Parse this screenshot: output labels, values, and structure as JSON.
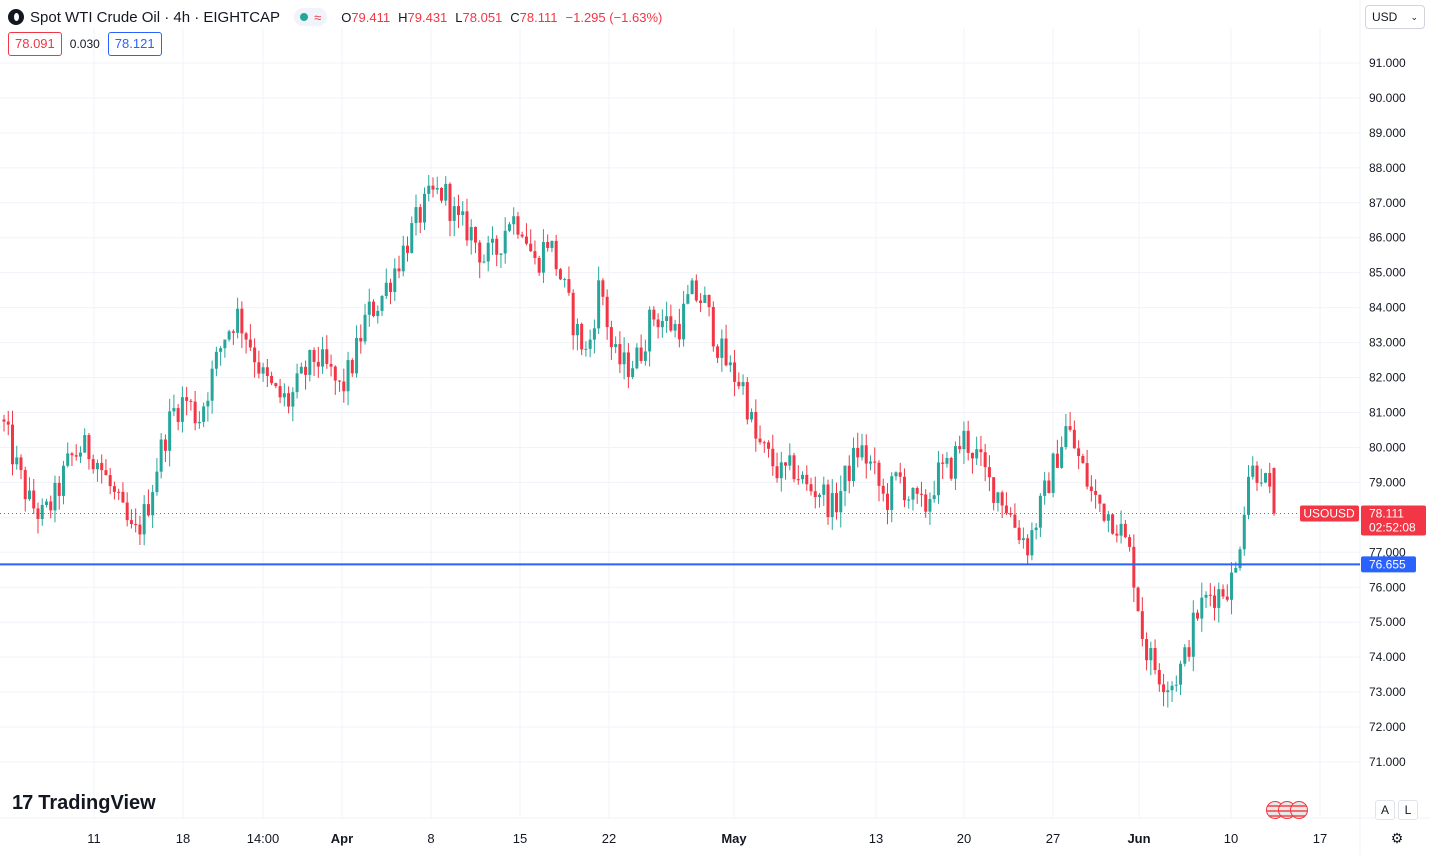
{
  "header": {
    "title": "Spot WTI Crude Oil · 4h · EIGHTCAP",
    "market_status_icon": "green-dot",
    "wave_icon": "≈",
    "ohlc": {
      "o_label": "O",
      "o": "79.411",
      "h_label": "H",
      "h": "79.431",
      "l_label": "L",
      "l": "78.051",
      "c_label": "C",
      "c": "78.111",
      "change": "−1.295 (−1.63%)"
    },
    "sell_price": "78.091",
    "spread": "0.030",
    "buy_price": "78.121"
  },
  "currency_selector": {
    "value": "USD",
    "icon": "chevron-down-icon"
  },
  "brand": {
    "logo_mark": "17",
    "name": "TradingView"
  },
  "scale_buttons": {
    "auto": "A",
    "log": "L"
  },
  "flags": [
    "us-flag",
    "us-flag",
    "us-flag"
  ],
  "colors": {
    "up": "#26a69a",
    "down": "#f23645",
    "line": "#2962ff",
    "grid": "#f0f3fa"
  },
  "chart_data": {
    "type": "candlestick",
    "symbol": "USOUSD",
    "interval": "4h",
    "ylim": [
      70.2,
      92.0
    ],
    "y_ticks": [
      "71.000",
      "72.000",
      "73.000",
      "74.000",
      "75.000",
      "76.000",
      "77.000",
      "78.000",
      "79.000",
      "80.000",
      "81.000",
      "82.000",
      "83.000",
      "84.000",
      "85.000",
      "86.000",
      "87.000",
      "88.000",
      "89.000",
      "90.000",
      "91.000"
    ],
    "x_ticks": [
      {
        "label": "11",
        "bold": false
      },
      {
        "label": "18",
        "bold": false
      },
      {
        "label": "14:00",
        "bold": false
      },
      {
        "label": "Apr",
        "bold": true
      },
      {
        "label": "8",
        "bold": false
      },
      {
        "label": "15",
        "bold": false
      },
      {
        "label": "22",
        "bold": false
      },
      {
        "label": "May",
        "bold": true
      },
      {
        "label": "13",
        "bold": false
      },
      {
        "label": "20",
        "bold": false
      },
      {
        "label": "27",
        "bold": false
      },
      {
        "label": "Jun",
        "bold": true
      },
      {
        "label": "10",
        "bold": false
      },
      {
        "label": "17",
        "bold": false
      }
    ],
    "last_price": {
      "label": "USOUSD",
      "value": "78.111",
      "countdown": "02:52:08"
    },
    "horizontal_line": {
      "value": "76.655"
    },
    "path_values": [
      80.6,
      79.4,
      78.4,
      78.0,
      78.6,
      79.6,
      80.0,
      79.8,
      79.0,
      78.2,
      77.4,
      78.2,
      79.8,
      81.0,
      81.4,
      80.8,
      82.0,
      83.2,
      83.8,
      83.0,
      82.0,
      81.5,
      81.3,
      82.0,
      82.6,
      82.2,
      81.6,
      82.5,
      83.8,
      84.2,
      85.0,
      85.8,
      86.6,
      87.2,
      87.3,
      86.4,
      86.2,
      85.4,
      85.6,
      86.6,
      86.4,
      85.2,
      86.0,
      84.8,
      83.5,
      82.6,
      84.8,
      82.6,
      82.3,
      82.6,
      83.8,
      83.6,
      83.4,
      84.4,
      84.2,
      83.0,
      82.2,
      81.8,
      80.2,
      79.7,
      79.2,
      79.4,
      78.8,
      78.8,
      78.2,
      79.2,
      80.0,
      79.4,
      78.4,
      79.2,
      78.5,
      78.2,
      79.2,
      79.4,
      80.3,
      79.8,
      79.0,
      78.6,
      77.8,
      77.2,
      78.3,
      79.5,
      80.6,
      79.6,
      78.6,
      78.2,
      77.8,
      76.8,
      74.3,
      73.6,
      73.2,
      73.8,
      75.2,
      75.8,
      75.9,
      76.3,
      79.3,
      79.4,
      78.1
    ],
    "last_close": 78.111,
    "last_open": 79.411,
    "last_high": 79.431,
    "last_low": 78.051
  }
}
